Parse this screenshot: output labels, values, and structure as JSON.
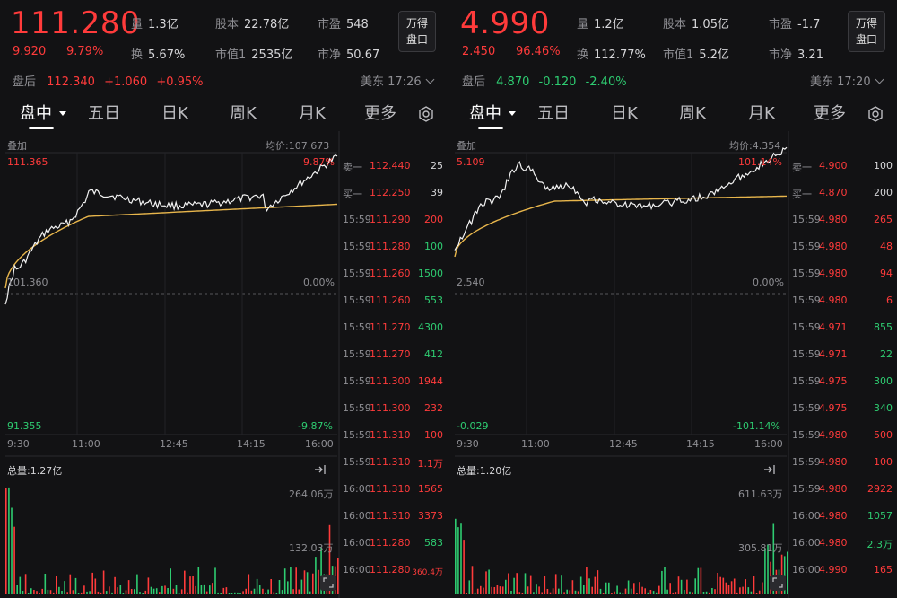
{
  "left": {
    "price": "111.280",
    "change": "9.920",
    "change_pct": "9.79%",
    "stats": [
      {
        "k": "量",
        "v": "1.3亿"
      },
      {
        "k": "股本",
        "v": "22.78亿"
      },
      {
        "k": "市盈",
        "v": "548"
      },
      {
        "k": "换",
        "v": "5.67%"
      },
      {
        "k": "市值1",
        "v": "2535亿"
      },
      {
        "k": "市净",
        "v": "50.67"
      }
    ],
    "wd_button": [
      "万得",
      "盘口"
    ],
    "after_hours": {
      "label": "盘后",
      "price": "112.340",
      "change": "+1.060",
      "pct": "+0.95%"
    },
    "timezone": "美东 17:26",
    "tabs": [
      "盘中",
      "五日",
      "日K",
      "周K",
      "月K",
      "更多"
    ],
    "overlay_label": "叠加",
    "avg_price": "均价:107.673",
    "y_top": "111.365",
    "y_mid": "101.360",
    "y_bot": "91.355",
    "pct_top": "9.87%",
    "pct_mid": "0.00%",
    "pct_bot": "-9.87%",
    "times": [
      "9:30",
      "11:00",
      "12:45",
      "14:15",
      "16:00"
    ],
    "volume_total": "总量:1.27亿",
    "vol_max": "264.06万",
    "vol_mid": "132.03万",
    "order_book": [
      {
        "side": "卖一",
        "price": "112.440",
        "qty": "25"
      },
      {
        "side": "买一",
        "price": "112.250",
        "qty": "39"
      }
    ],
    "trades": [
      {
        "t": "15:59",
        "p": "111.290",
        "q": "200",
        "c": "red"
      },
      {
        "t": "15:59",
        "p": "111.280",
        "q": "100",
        "c": "green"
      },
      {
        "t": "15:59",
        "p": "111.260",
        "q": "1500",
        "c": "green"
      },
      {
        "t": "15:59",
        "p": "111.260",
        "q": "553",
        "c": "green"
      },
      {
        "t": "15:59",
        "p": "111.270",
        "q": "4300",
        "c": "green"
      },
      {
        "t": "15:59",
        "p": "111.270",
        "q": "412",
        "c": "green"
      },
      {
        "t": "15:59",
        "p": "111.300",
        "q": "1944",
        "c": "red"
      },
      {
        "t": "15:59",
        "p": "111.300",
        "q": "232",
        "c": "red"
      },
      {
        "t": "15:59",
        "p": "111.310",
        "q": "100",
        "c": "red"
      },
      {
        "t": "15:59",
        "p": "111.310",
        "q": "1.1万",
        "c": "red"
      },
      {
        "t": "16:00",
        "p": "111.310",
        "q": "1565",
        "c": "red"
      },
      {
        "t": "16:00",
        "p": "111.310",
        "q": "3373",
        "c": "red"
      },
      {
        "t": "16:00",
        "p": "111.280",
        "q": "583",
        "c": "green"
      },
      {
        "t": "16:00",
        "p": "111.280",
        "q": "360.4万",
        "c": "red"
      }
    ]
  },
  "right": {
    "price": "4.990",
    "change": "2.450",
    "change_pct": "96.46%",
    "stats": [
      {
        "k": "量",
        "v": "1.2亿"
      },
      {
        "k": "股本",
        "v": "1.05亿"
      },
      {
        "k": "市盈",
        "v": "-1.7"
      },
      {
        "k": "换",
        "v": "112.77%"
      },
      {
        "k": "市值1",
        "v": "5.2亿"
      },
      {
        "k": "市净",
        "v": "3.21"
      }
    ],
    "wd_button": [
      "万得",
      "盘口"
    ],
    "after_hours": {
      "label": "盘后",
      "price": "4.870",
      "change": "-0.120",
      "pct": "-2.40%"
    },
    "timezone": "美东 17:20",
    "tabs": [
      "盘中",
      "五日",
      "日K",
      "周K",
      "月K",
      "更多"
    ],
    "overlay_label": "叠加",
    "avg_price": "均价:4.354",
    "y_top": "5.109",
    "y_mid": "2.540",
    "y_bot": "-0.029",
    "pct_top": "101.14%",
    "pct_mid": "0.00%",
    "pct_bot": "-101.14%",
    "times": [
      "9:30",
      "11:00",
      "12:45",
      "14:15",
      "16:00"
    ],
    "volume_total": "总量:1.20亿",
    "vol_max": "611.63万",
    "vol_mid": "305.81万",
    "order_book": [
      {
        "side": "卖一",
        "price": "4.900",
        "qty": "100"
      },
      {
        "side": "买一",
        "price": "4.870",
        "qty": "200"
      }
    ],
    "trades": [
      {
        "t": "15:59",
        "p": "4.980",
        "q": "265",
        "c": "red"
      },
      {
        "t": "15:59",
        "p": "4.980",
        "q": "48",
        "c": "red"
      },
      {
        "t": "15:59",
        "p": "4.980",
        "q": "94",
        "c": "red"
      },
      {
        "t": "15:59",
        "p": "4.980",
        "q": "6",
        "c": "red"
      },
      {
        "t": "15:59",
        "p": "4.971",
        "q": "855",
        "c": "green"
      },
      {
        "t": "15:59",
        "p": "4.971",
        "q": "22",
        "c": "green"
      },
      {
        "t": "15:59",
        "p": "4.975",
        "q": "300",
        "c": "green"
      },
      {
        "t": "15:59",
        "p": "4.975",
        "q": "340",
        "c": "green"
      },
      {
        "t": "15:59",
        "p": "4.980",
        "q": "500",
        "c": "red"
      },
      {
        "t": "15:59",
        "p": "4.980",
        "q": "100",
        "c": "red"
      },
      {
        "t": "15:59",
        "p": "4.980",
        "q": "2922",
        "c": "red"
      },
      {
        "t": "16:00",
        "p": "4.980",
        "q": "1057",
        "c": "green"
      },
      {
        "t": "16:00",
        "p": "4.980",
        "q": "2.3万",
        "c": "green"
      },
      {
        "t": "16:00",
        "p": "4.990",
        "q": "165",
        "c": "red"
      }
    ]
  },
  "colors": {
    "up": "#ff3b3b",
    "down": "#2ecc71",
    "avg_line": "#e8b64c",
    "price_line": "#f2f2f2"
  }
}
